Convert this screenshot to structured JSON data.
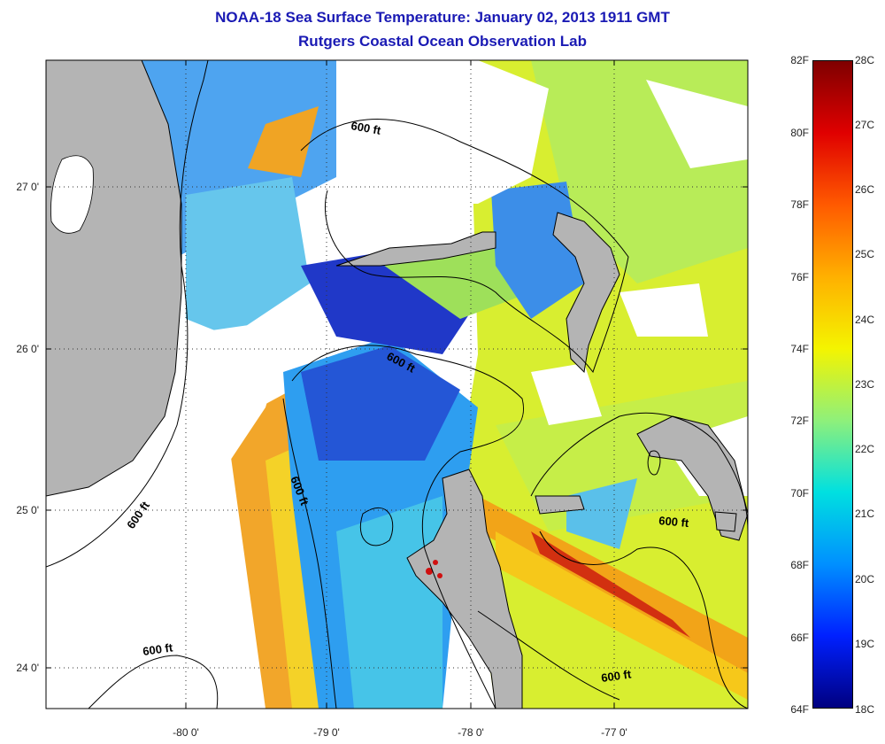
{
  "title": "NOAA-18 Sea Surface Temperature:  January 02, 2013 1911 GMT",
  "subtitle": "Rutgers Coastal Ocean Observation Lab",
  "axes": {
    "y_ticks": [
      "27 0'",
      "26 0'",
      "25 0'",
      "24 0'"
    ],
    "x_ticks": [
      "-80 0'",
      "-79 0'",
      "-78 0'",
      "-77 0'"
    ],
    "grid": "dotted"
  },
  "contour_label": "600 ft",
  "colorbar": {
    "fahrenheit_labels": [
      "82F",
      "80F",
      "78F",
      "76F",
      "74F",
      "72F",
      "70F",
      "68F",
      "66F",
      "64F"
    ],
    "celsius_labels": [
      "28C",
      "27C",
      "26C",
      "25C",
      "24C",
      "23C",
      "22C",
      "21C",
      "20C",
      "19C",
      "18C"
    ],
    "colors": [
      "#7f0000",
      "#e00000",
      "#ff5a00",
      "#ffb000",
      "#f4f400",
      "#8ff07a",
      "#00e0e0",
      "#0090ff",
      "#0020ff",
      "#000080"
    ]
  },
  "legend_colors": {
    "land": "#b4b4b4",
    "cloud": "#ffffff",
    "contour": "#000000"
  }
}
